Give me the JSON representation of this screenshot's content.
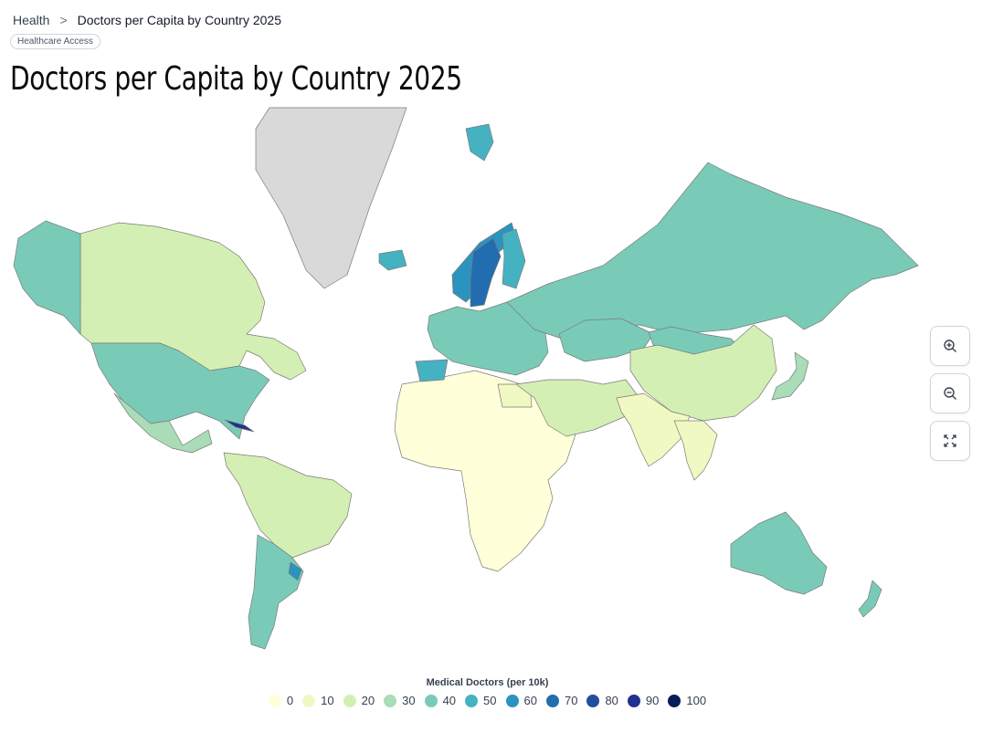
{
  "breadcrumb": {
    "root": "Health",
    "separator": ">",
    "current": "Doctors per Capita by Country 2025"
  },
  "tag": "Healthcare Access",
  "title": "Doctors per Capita by Country 2025",
  "legend": {
    "title": "Medical Doctors (per 10k)",
    "items": [
      {
        "label": "0",
        "color": "#ffffd9"
      },
      {
        "label": "10",
        "color": "#f1f9c2"
      },
      {
        "label": "20",
        "color": "#d4efb3"
      },
      {
        "label": "30",
        "color": "#a9dcb7"
      },
      {
        "label": "40",
        "color": "#79cbb8"
      },
      {
        "label": "50",
        "color": "#45b2c2"
      },
      {
        "label": "60",
        "color": "#2b93bf"
      },
      {
        "label": "70",
        "color": "#226db0"
      },
      {
        "label": "80",
        "color": "#234ea0"
      },
      {
        "label": "90",
        "color": "#213190"
      },
      {
        "label": "100",
        "color": "#081d58"
      }
    ]
  },
  "map": {
    "no_data_color": "#d9d9d9",
    "border_color": "#7a7a7a",
    "regions": [
      {
        "name": "Canada",
        "level": "20"
      },
      {
        "name": "Alaska",
        "level": "40"
      },
      {
        "name": "United States",
        "level": "40"
      },
      {
        "name": "Greenland",
        "level": "no data"
      },
      {
        "name": "Mexico",
        "level": "30"
      },
      {
        "name": "Cuba",
        "level": "90"
      },
      {
        "name": "South America (north)",
        "level": "20"
      },
      {
        "name": "Argentina",
        "level": "40"
      },
      {
        "name": "Uruguay",
        "level": "60"
      },
      {
        "name": "Africa",
        "level": "0"
      },
      {
        "name": "Egypt",
        "level": "10"
      },
      {
        "name": "Iceland",
        "level": "50"
      },
      {
        "name": "Norway",
        "level": "60"
      },
      {
        "name": "Sweden",
        "level": "70"
      },
      {
        "name": "Finland",
        "level": "50"
      },
      {
        "name": "Svalbard",
        "level": "50"
      },
      {
        "name": "Europe",
        "level": "40"
      },
      {
        "name": "Spain",
        "level": "50"
      },
      {
        "name": "Russia",
        "level": "40"
      },
      {
        "name": "Kazakhstan",
        "level": "40"
      },
      {
        "name": "Mongolia",
        "level": "40"
      },
      {
        "name": "China",
        "level": "20"
      },
      {
        "name": "Middle East",
        "level": "20"
      },
      {
        "name": "India",
        "level": "10"
      },
      {
        "name": "Southeast Asia",
        "level": "10"
      },
      {
        "name": "Japan",
        "level": "30"
      },
      {
        "name": "Australia",
        "level": "40"
      },
      {
        "name": "New Zealand",
        "level": "40"
      }
    ]
  }
}
